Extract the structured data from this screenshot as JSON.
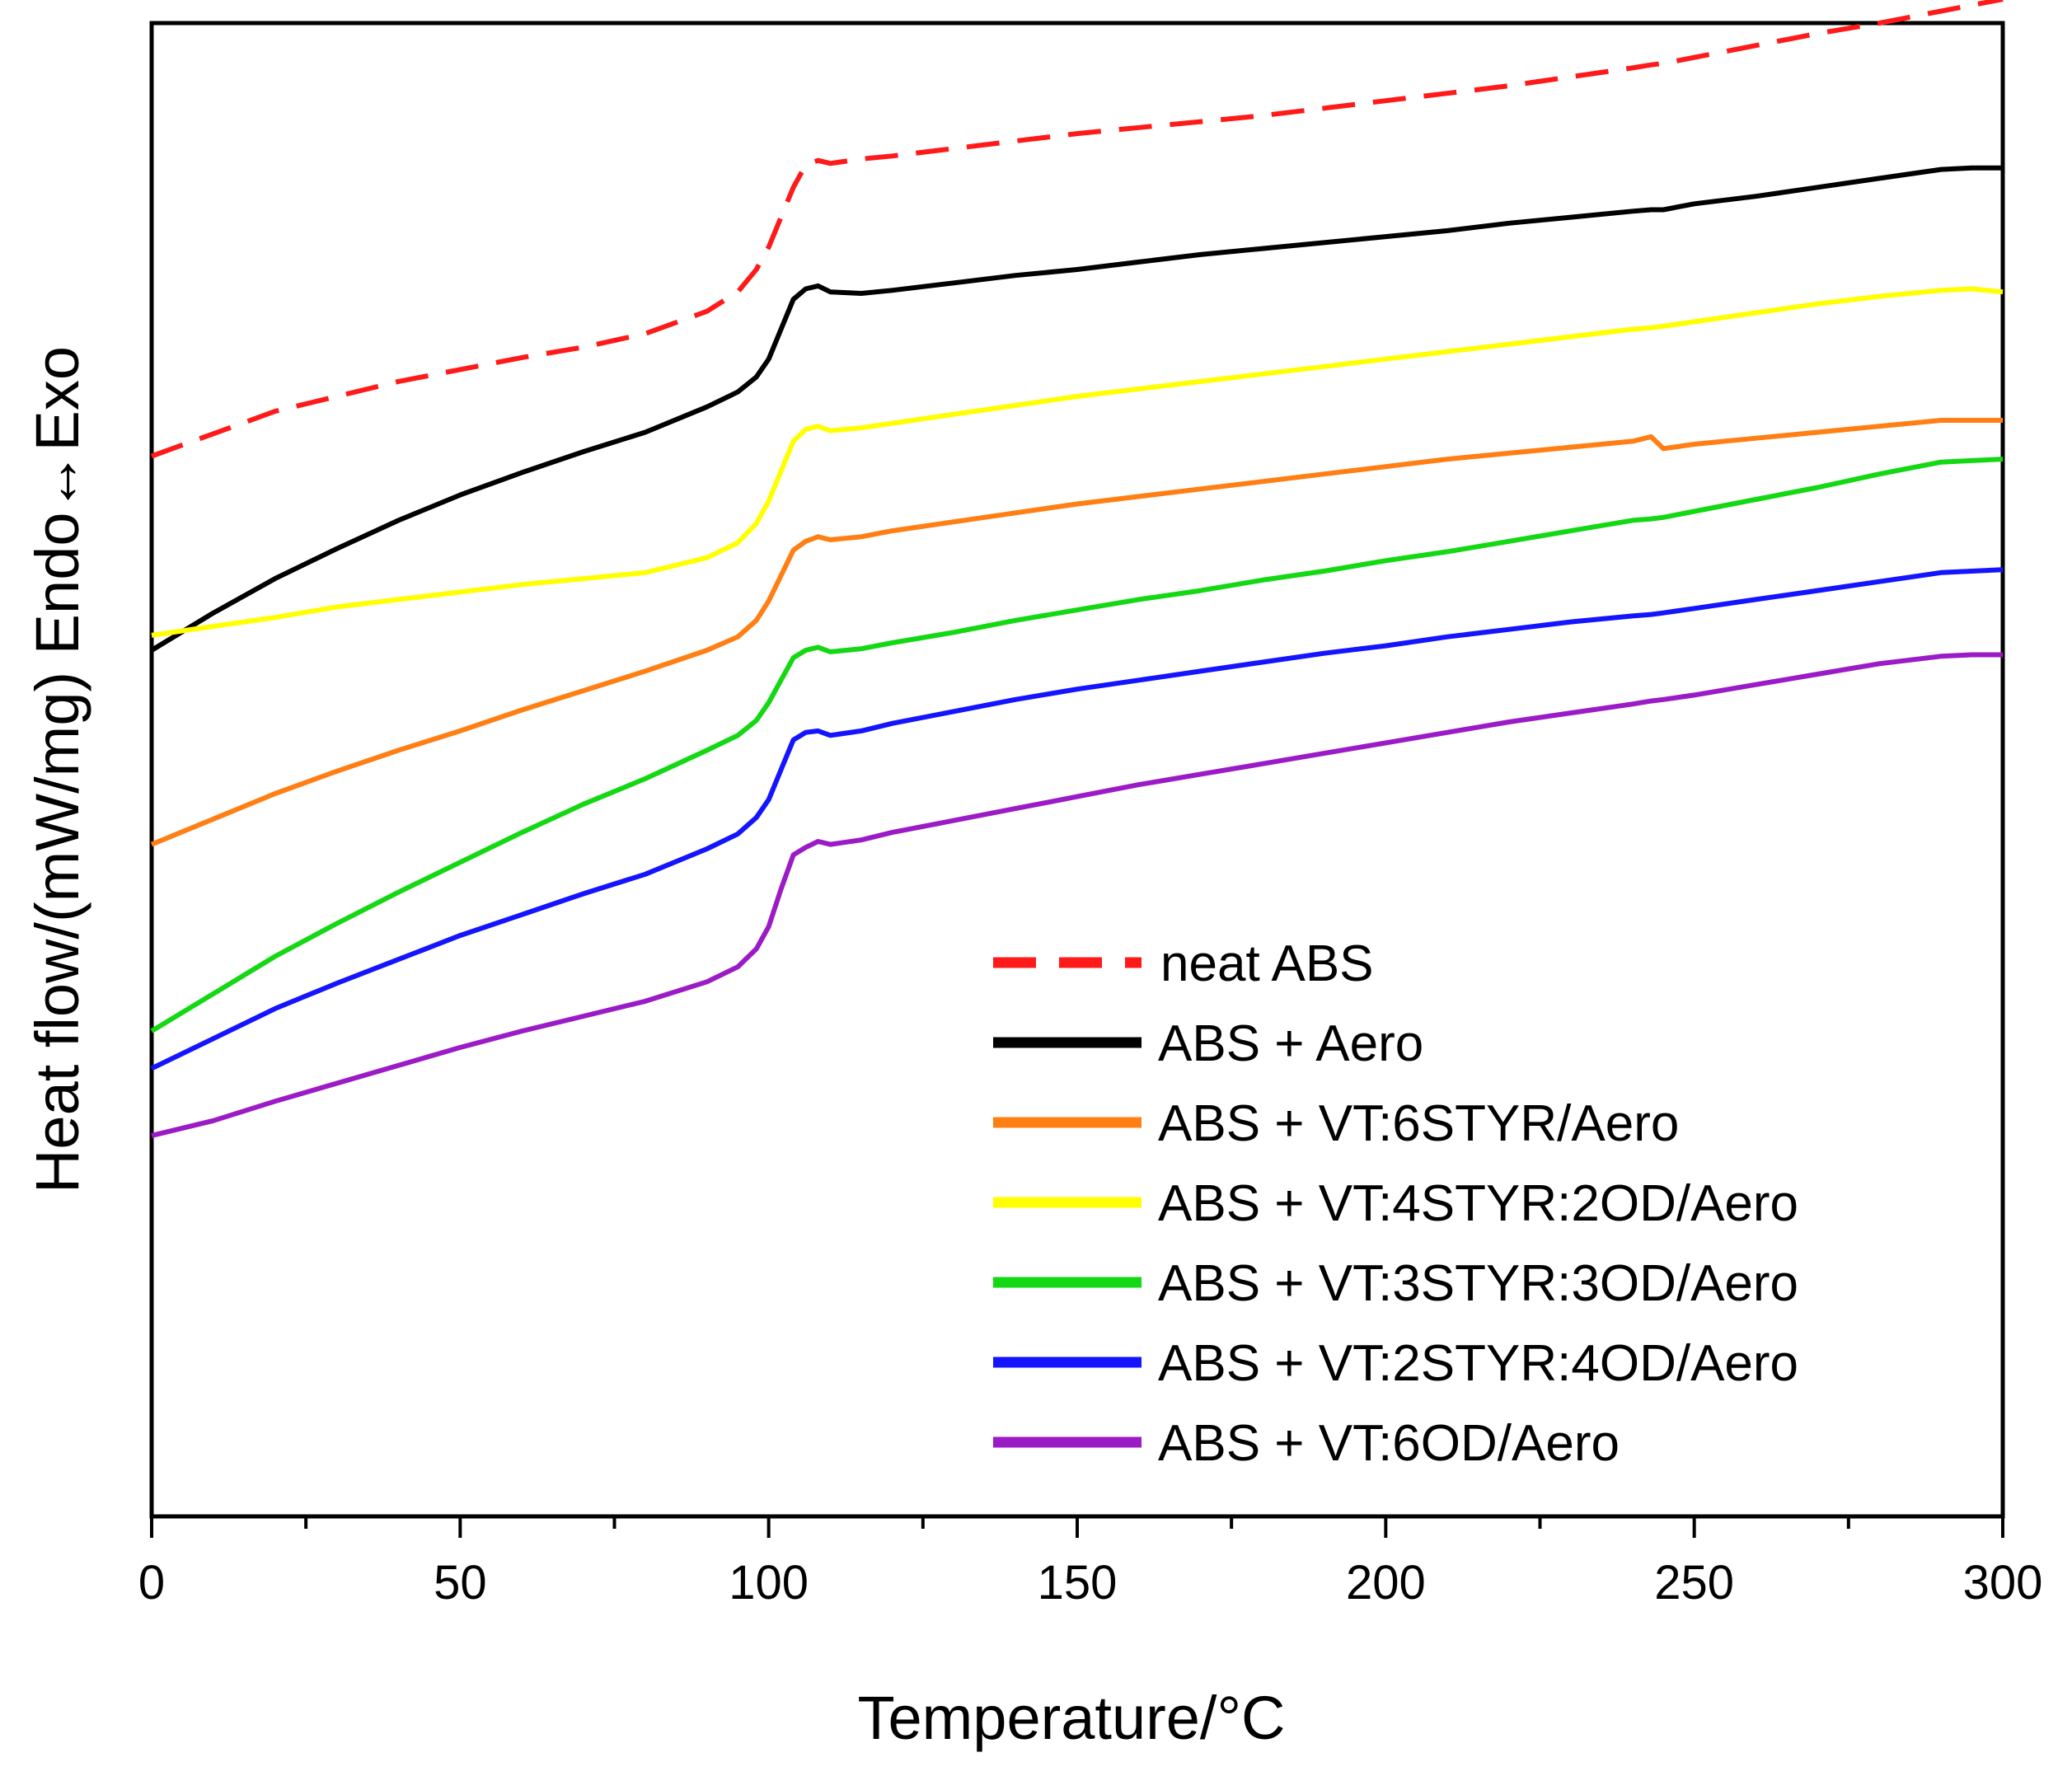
{
  "chart_data": {
    "type": "line",
    "title": "",
    "xlabel": "Temperature/°C",
    "ylabel": "Heat flow/(mW/mg) Endo↔Exo",
    "xlim": [
      0,
      300
    ],
    "ylim": [
      0,
      100
    ],
    "y_ticks_labeled": false,
    "x_ticks": [
      0,
      50,
      100,
      150,
      200,
      250,
      300
    ],
    "x_tick_labels": [
      "0",
      "50",
      "100",
      "150",
      "200",
      "250",
      "300"
    ],
    "legend_position": "bottom-right",
    "x": [
      0,
      10,
      20,
      30,
      40,
      50,
      60,
      70,
      80,
      90,
      95,
      98,
      100,
      102,
      104,
      106,
      108,
      110,
      115,
      120,
      130,
      140,
      150,
      160,
      170,
      180,
      190,
      200,
      210,
      220,
      230,
      240,
      243,
      245,
      250,
      260,
      270,
      280,
      290,
      295,
      300
    ],
    "series": [
      {
        "name": "neat ABS",
        "color": "#ff1a1a",
        "dash": true,
        "values": [
          71.0,
          72.5,
          74.0,
          75.0,
          76.0,
          76.8,
          77.6,
          78.3,
          79.2,
          80.7,
          82.0,
          83.5,
          85.0,
          87.0,
          89.0,
          90.5,
          90.8,
          90.6,
          90.9,
          91.1,
          91.6,
          92.1,
          92.6,
          93.0,
          93.4,
          93.8,
          94.3,
          94.8,
          95.3,
          95.8,
          96.4,
          97.0,
          97.2,
          97.3,
          97.7,
          98.5,
          99.3,
          100.0,
          100.8,
          101.2,
          101.6
        ]
      },
      {
        "name": "ABS + Aero",
        "color": "#000000",
        "dash": false,
        "values": [
          58.0,
          60.5,
          62.8,
          64.8,
          66.7,
          68.4,
          69.9,
          71.3,
          72.6,
          74.3,
          75.3,
          76.3,
          77.5,
          79.5,
          81.5,
          82.2,
          82.4,
          82.0,
          81.9,
          82.1,
          82.6,
          83.1,
          83.5,
          84.0,
          84.5,
          84.9,
          85.3,
          85.7,
          86.1,
          86.6,
          87.0,
          87.4,
          87.5,
          87.5,
          87.9,
          88.4,
          89.0,
          89.6,
          90.2,
          90.3,
          90.3
        ]
      },
      {
        "name": "ABS + VT:6STYR/Aero",
        "color": "#ff7f14",
        "dash": false,
        "values": [
          45.0,
          46.7,
          48.4,
          49.9,
          51.3,
          52.6,
          54.0,
          55.3,
          56.6,
          58.0,
          58.9,
          60.0,
          61.3,
          63.0,
          64.7,
          65.3,
          65.6,
          65.4,
          65.6,
          66.0,
          66.6,
          67.2,
          67.8,
          68.3,
          68.8,
          69.3,
          69.8,
          70.3,
          70.8,
          71.2,
          71.6,
          72.0,
          72.3,
          71.5,
          71.8,
          72.2,
          72.6,
          73.0,
          73.4,
          73.4,
          73.4
        ]
      },
      {
        "name": "ABS + VT:4STYR:2OD/Aero",
        "color": "#ffff00",
        "dash": false,
        "values": [
          59.0,
          59.6,
          60.2,
          60.9,
          61.4,
          61.9,
          62.4,
          62.8,
          63.2,
          64.2,
          65.2,
          66.5,
          68.0,
          70.0,
          72.0,
          72.8,
          73.0,
          72.7,
          72.9,
          73.2,
          73.8,
          74.4,
          75.0,
          75.5,
          76.0,
          76.5,
          77.0,
          77.5,
          78.0,
          78.5,
          79.0,
          79.5,
          79.6,
          79.7,
          80.0,
          80.6,
          81.2,
          81.7,
          82.1,
          82.2,
          82.0
        ]
      },
      {
        "name": "ABS + VT:3STYR:3OD/Aero",
        "color": "#14d814",
        "dash": false,
        "values": [
          32.5,
          35.0,
          37.5,
          39.7,
          41.8,
          43.8,
          45.8,
          47.7,
          49.4,
          51.3,
          52.3,
          53.3,
          54.5,
          56.0,
          57.5,
          58.0,
          58.2,
          57.9,
          58.1,
          58.5,
          59.2,
          60.0,
          60.7,
          61.4,
          62.0,
          62.7,
          63.3,
          64.0,
          64.6,
          65.3,
          66.0,
          66.7,
          66.8,
          66.9,
          67.3,
          68.1,
          68.9,
          69.8,
          70.6,
          70.7,
          70.8
        ]
      },
      {
        "name": "ABS + VT:2STYR:4OD/Aero",
        "color": "#1414ff",
        "dash": false,
        "values": [
          30.0,
          32.0,
          34.0,
          35.7,
          37.3,
          38.9,
          40.3,
          41.7,
          43.0,
          44.7,
          45.7,
          46.8,
          48.0,
          50.0,
          52.0,
          52.5,
          52.6,
          52.3,
          52.6,
          53.1,
          53.9,
          54.7,
          55.4,
          56.0,
          56.6,
          57.2,
          57.8,
          58.3,
          58.9,
          59.4,
          59.9,
          60.3,
          60.4,
          60.5,
          60.8,
          61.4,
          62.0,
          62.6,
          63.2,
          63.3,
          63.4
        ]
      },
      {
        "name": "ABS + VT:6OD/Aero",
        "color": "#9b1bc6",
        "dash": false,
        "values": [
          25.5,
          26.5,
          27.8,
          29.0,
          30.2,
          31.4,
          32.5,
          33.5,
          34.5,
          35.8,
          36.8,
          38.0,
          39.5,
          42.0,
          44.3,
          44.8,
          45.2,
          45.0,
          45.3,
          45.8,
          46.6,
          47.4,
          48.2,
          49.0,
          49.7,
          50.4,
          51.1,
          51.8,
          52.5,
          53.2,
          53.8,
          54.4,
          54.6,
          54.7,
          55.0,
          55.7,
          56.4,
          57.1,
          57.6,
          57.7,
          57.7
        ]
      }
    ]
  }
}
